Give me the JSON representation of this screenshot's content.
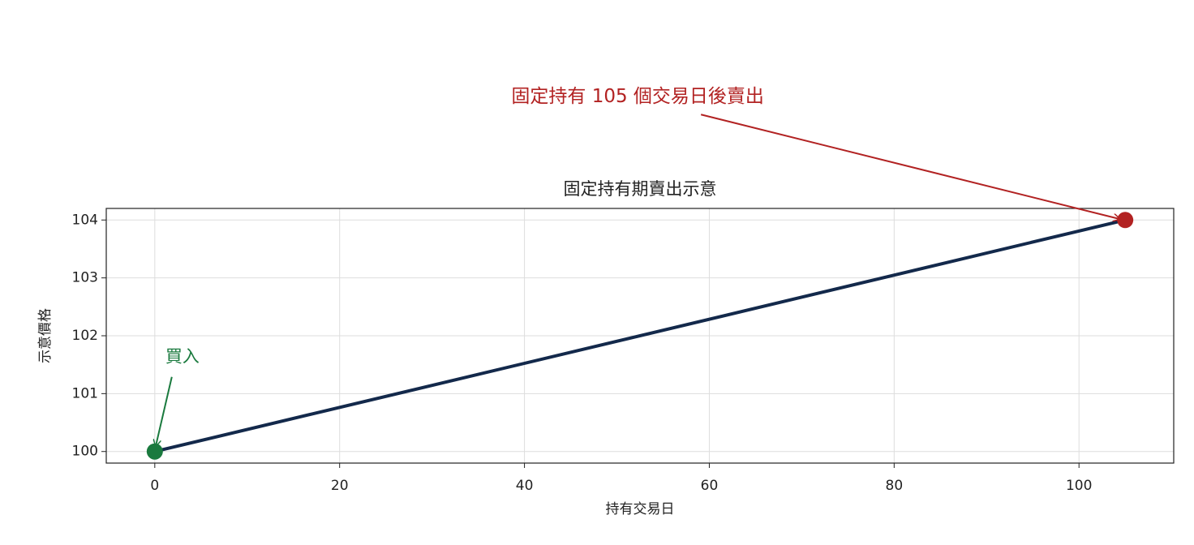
{
  "chart_data": {
    "type": "line",
    "title": "固定持有期賣出示意",
    "xlabel": "持有交易日",
    "ylabel": "示意價格",
    "x": [
      0,
      105
    ],
    "series": [
      {
        "color": "#13294b",
        "values": [
          100,
          104
        ]
      }
    ],
    "xlim": [
      -5.25,
      110.25
    ],
    "xticks": [
      0,
      20,
      40,
      60,
      80,
      100
    ],
    "ylim": [
      99.8,
      104.2
    ],
    "yticks": [
      100,
      101,
      102,
      103,
      104
    ],
    "grid": true,
    "annotations": [
      {
        "text": "買入",
        "x": 0,
        "y": 100,
        "color": "#1a7a3e"
      },
      {
        "text": "固定持有 105 個交易日後賣出",
        "x": 105,
        "y": 104,
        "color": "#b22222"
      }
    ]
  }
}
